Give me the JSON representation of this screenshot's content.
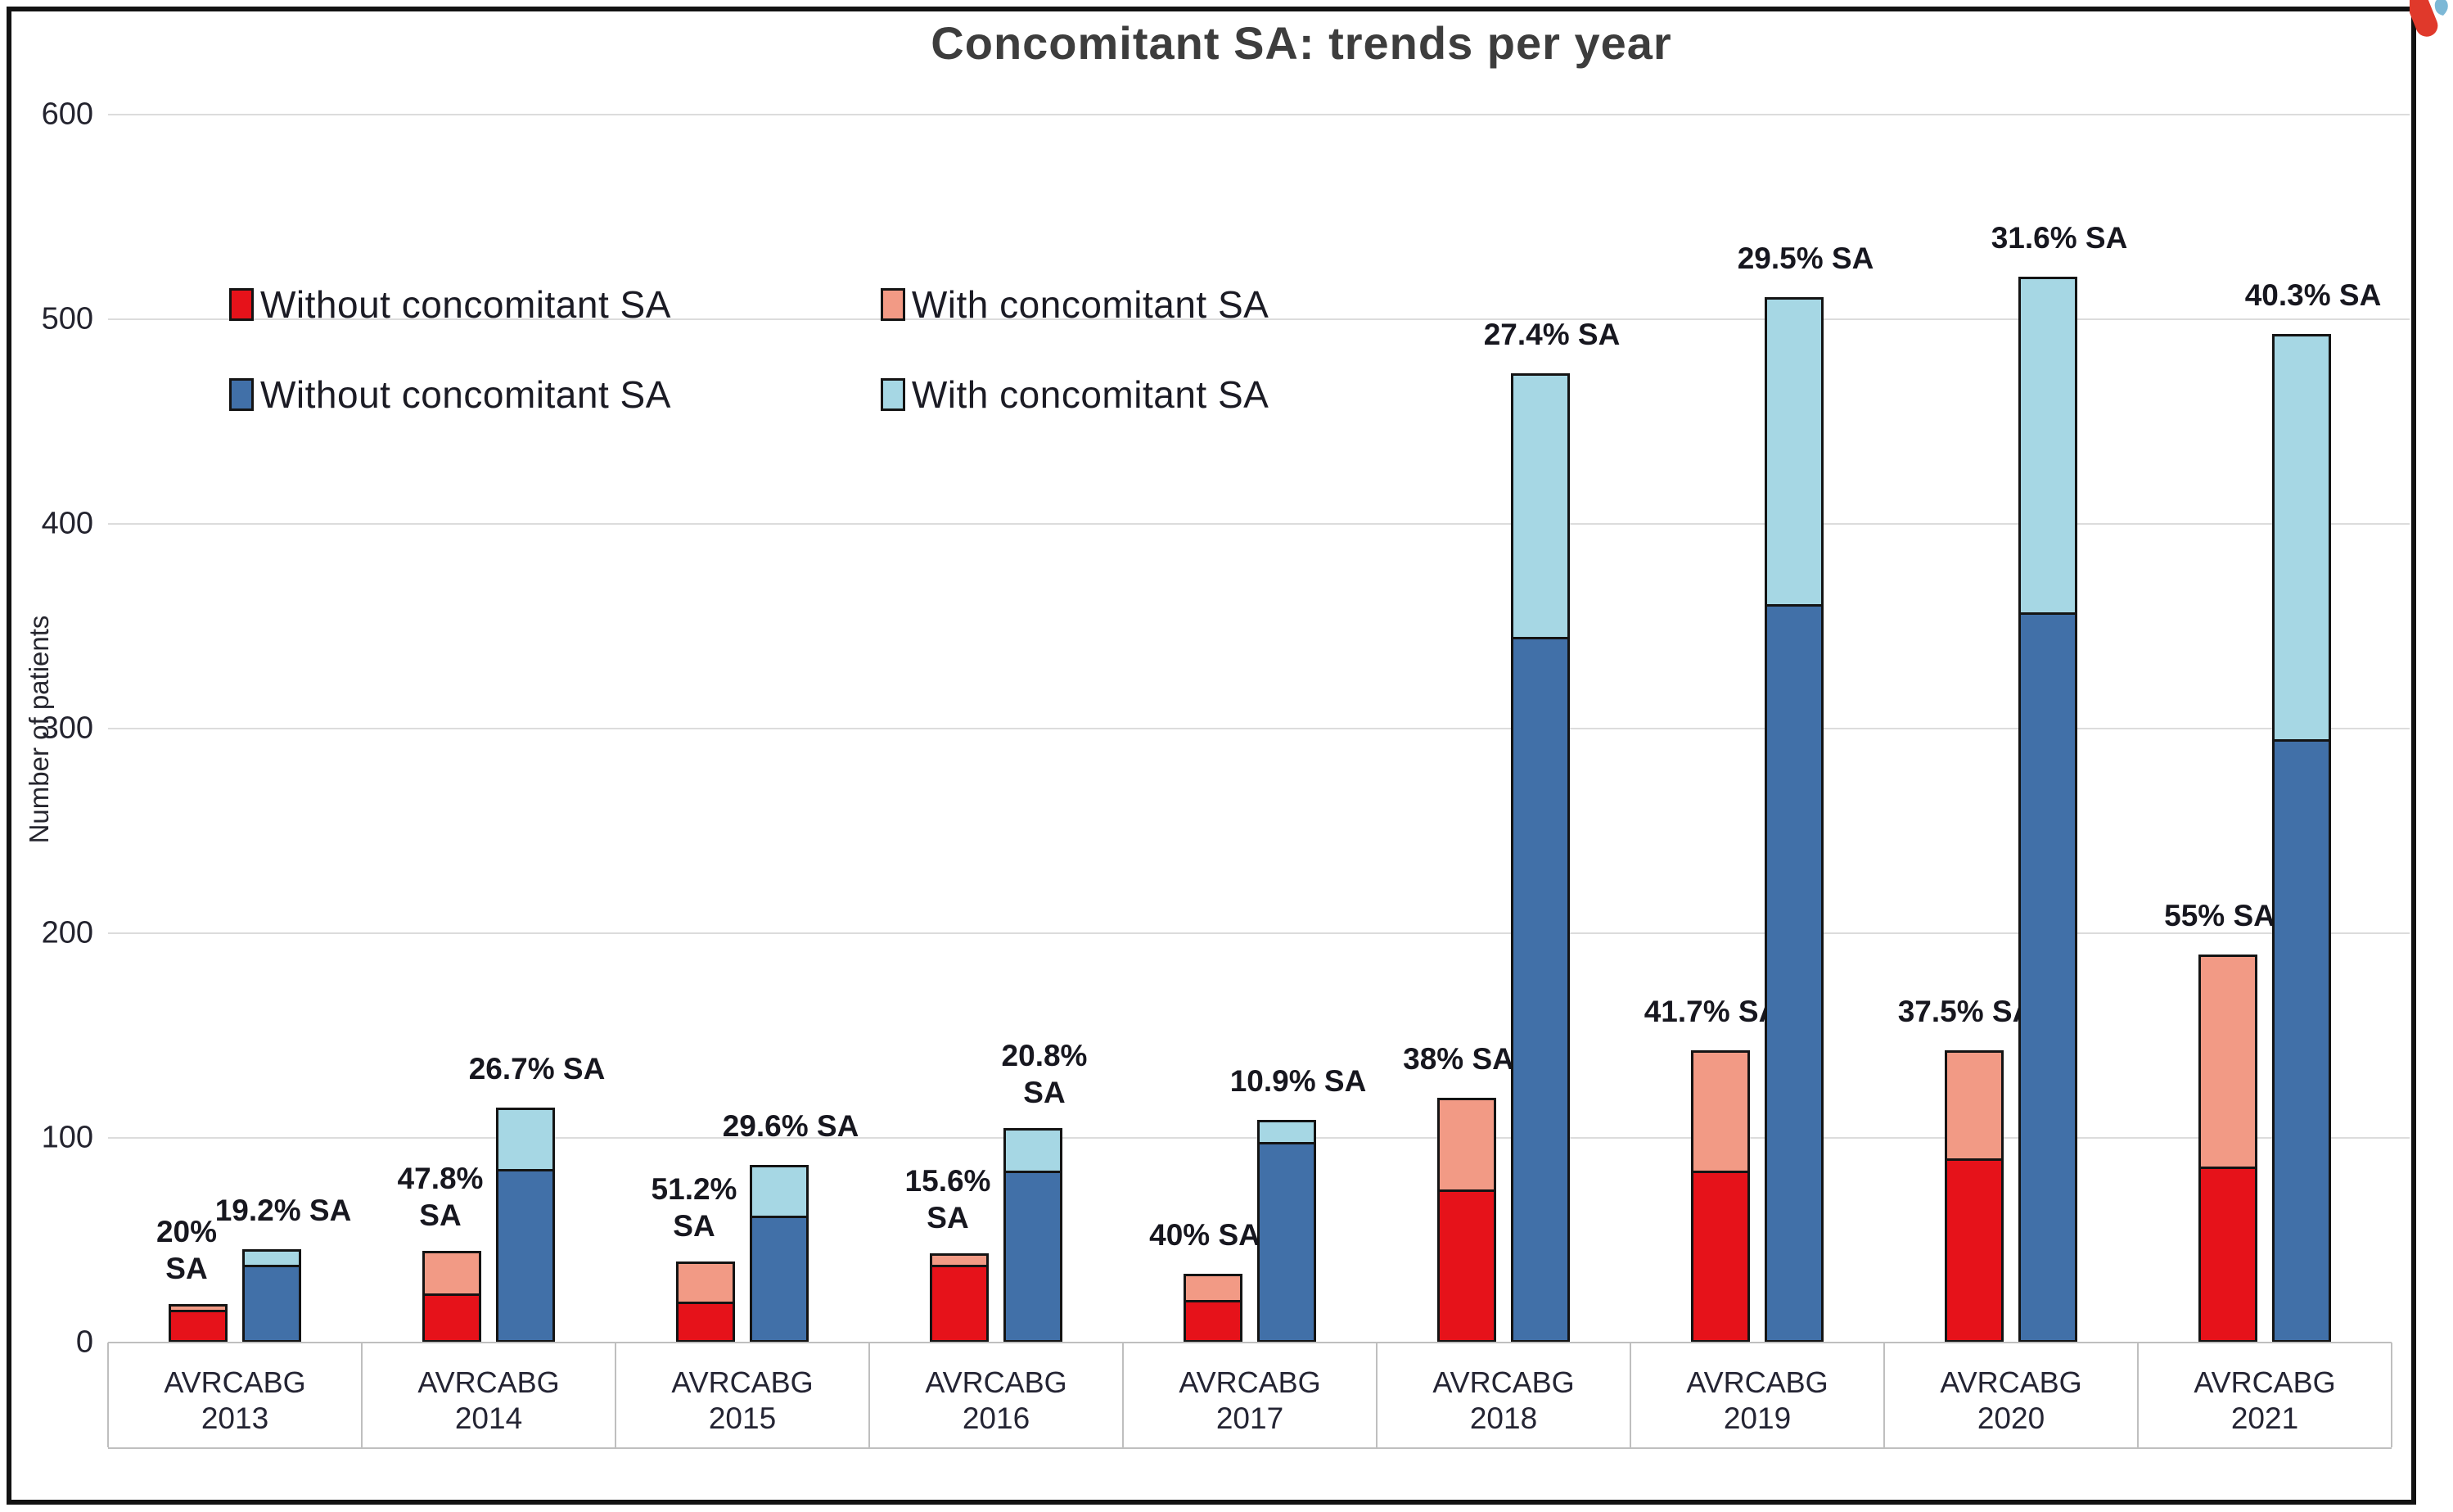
{
  "title": "Concomitant SA: trends per year",
  "y_axis": {
    "label": "Number of patients",
    "ticks": [
      600,
      500,
      400,
      300,
      200,
      100,
      0
    ]
  },
  "legend": {
    "rows": [
      [
        {
          "label": "Without concomitant SA",
          "color": "#e6121a"
        },
        {
          "label": "With concomitant SA",
          "color": "#f29a85"
        }
      ],
      [
        {
          "label": "Without concomitant SA",
          "color": "#4170a8"
        },
        {
          "label": "With concomitant SA",
          "color": "#a6d7e4"
        }
      ]
    ]
  },
  "x_axis": {
    "procedure_labels": [
      "AVR",
      "CABG"
    ],
    "years": [
      "2013",
      "2014",
      "2015",
      "2016",
      "2017",
      "2018",
      "2019",
      "2020",
      "2021"
    ]
  },
  "chart_data": {
    "type": "bar",
    "stacked": true,
    "categories": [
      "2013",
      "2014",
      "2015",
      "2016",
      "2017",
      "2018",
      "2019",
      "2020",
      "2021"
    ],
    "series": [
      {
        "name": "AVR Without concomitant SA",
        "color": "#e6121a",
        "values": [
          16,
          24,
          20,
          38,
          21,
          75,
          84,
          90,
          86
        ]
      },
      {
        "name": "AVR With concomitant SA",
        "color": "#f29a85",
        "values": [
          4,
          22,
          21,
          7,
          14,
          46,
          60,
          54,
          105
        ]
      },
      {
        "name": "CABG Without concomitant SA",
        "color": "#4170a8",
        "values": [
          38,
          85,
          62,
          84,
          98,
          345,
          361,
          357,
          295
        ]
      },
      {
        "name": "CABG With concomitant SA",
        "color": "#a6d7e4",
        "values": [
          9,
          31,
          26,
          22,
          12,
          130,
          151,
          165,
          199
        ]
      }
    ],
    "annotations": {
      "avr_sa_labels": [
        [
          "20%",
          "SA"
        ],
        [
          "47.8%",
          "SA"
        ],
        [
          "51.2%",
          "SA"
        ],
        [
          "15.6%",
          "SA"
        ],
        [
          "40% SA"
        ],
        [
          "38% SA"
        ],
        [
          "41.7% SA"
        ],
        [
          "37.5% SA"
        ],
        [
          "55% SA"
        ]
      ],
      "cabg_sa_labels": [
        [
          "19.2% SA"
        ],
        [
          "26.7% SA"
        ],
        [
          "29.6% SA"
        ],
        [
          "20.8%",
          "SA"
        ],
        [
          "10.9% SA"
        ],
        [
          "27.4% SA"
        ],
        [
          "29.5% SA"
        ],
        [
          "31.6% SA"
        ],
        [
          "40.3% SA"
        ]
      ]
    },
    "title": "Concomitant SA: trends per year",
    "xlabel": "",
    "ylabel": "Number of patients",
    "ylim": [
      0,
      600
    ],
    "grid": true,
    "legend_position": "top-left-inside"
  },
  "colors": {
    "red": "#e6121a",
    "salmon": "#f29a85",
    "dark_blue": "#4170a8",
    "light_blue": "#a6d7e4",
    "bar_border": "#141414",
    "gridline": "#dcdcdc",
    "axis_box": "#bfbfbf",
    "title": "#3d3d3d",
    "text": "#23232e",
    "frame": "#121212",
    "logo_red": "#e0392b",
    "logo_blue": "#7db8d6"
  }
}
